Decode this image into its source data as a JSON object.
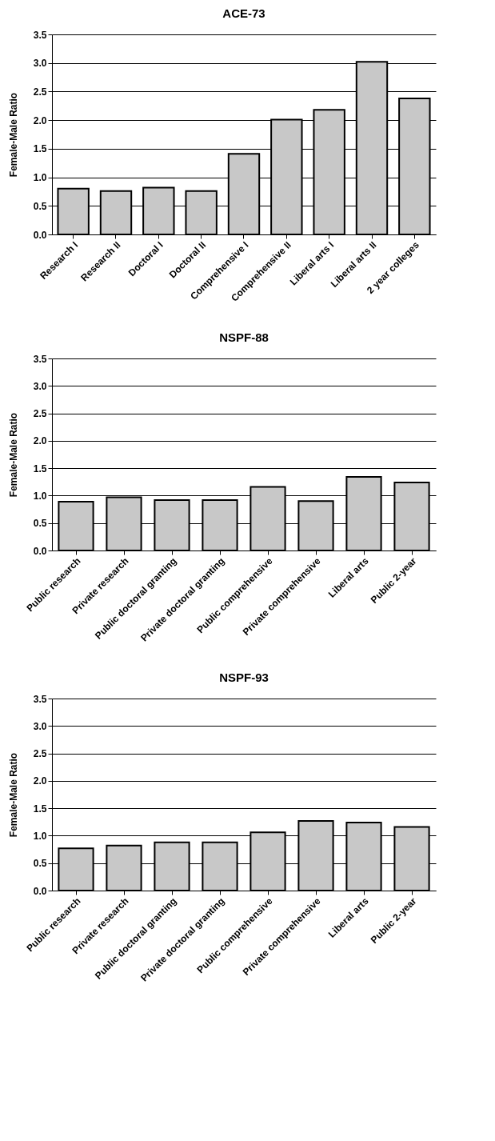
{
  "chart_data": [
    {
      "type": "bar",
      "title": "ACE-73",
      "ylabel": "Female-Male Ratio",
      "categories": [
        "Research I",
        "Research II",
        "Doctoral I",
        "Doctoral II",
        "Comprehensive I",
        "Comprehensive II",
        "Liberal arts I",
        "Liberal arts II",
        "2 year colleges"
      ],
      "values": [
        0.8,
        0.76,
        0.82,
        0.76,
        1.41,
        2.01,
        2.18,
        3.02,
        2.38
      ],
      "color": "#c8c8c8",
      "ylim": [
        0,
        3.5
      ],
      "yticks": [
        {
          "value": 0,
          "label": "0.0"
        },
        0.5,
        {
          "value": 1,
          "label": "1.0"
        },
        1.5,
        {
          "value": 2,
          "label": "2.0"
        },
        2.5,
        {
          "value": 3,
          "label": "3.0"
        },
        3.5
      ],
      "grid": "y"
    },
    {
      "type": "bar",
      "title": "NSPF-88",
      "ylabel": "Female-Male Ratio",
      "categories": [
        "Public research",
        "Private research",
        "Public doctoral granting",
        "Private doctoral granting",
        "Public comprehensive",
        "Private comprehensive",
        "Liberal arts",
        "Public 2-year"
      ],
      "values": [
        0.89,
        0.97,
        0.92,
        0.92,
        1.16,
        0.9,
        1.34,
        1.24
      ],
      "color": "#c8c8c8",
      "ylim": [
        0,
        3.5
      ],
      "yticks": [
        {
          "value": 0,
          "label": "0.0"
        },
        0.5,
        {
          "value": 1,
          "label": "1.0"
        },
        1.5,
        {
          "value": 2,
          "label": "2.0"
        },
        2.5,
        {
          "value": 3,
          "label": "3.0"
        },
        3.5
      ],
      "grid": "y"
    },
    {
      "type": "bar",
      "title": "NSPF-93",
      "ylabel": "Female-Male Ratio",
      "categories": [
        "Public research",
        "Private research",
        "Public doctoral granting",
        "Private doctoral granting",
        "Public comprehensive",
        "Private comprehensive",
        "Liberal arts",
        "Public 2-year"
      ],
      "values": [
        0.77,
        0.82,
        0.88,
        0.88,
        1.06,
        1.27,
        1.24,
        1.16
      ],
      "color": "#c8c8c8",
      "ylim": [
        0,
        3.5
      ],
      "yticks": [
        {
          "value": 0,
          "label": "0.0"
        },
        0.5,
        {
          "value": 1,
          "label": "1.0"
        },
        1.5,
        {
          "value": 2,
          "label": "2.0"
        },
        2.5,
        {
          "value": 3,
          "label": "3.0"
        },
        3.5
      ],
      "grid": "y"
    }
  ]
}
